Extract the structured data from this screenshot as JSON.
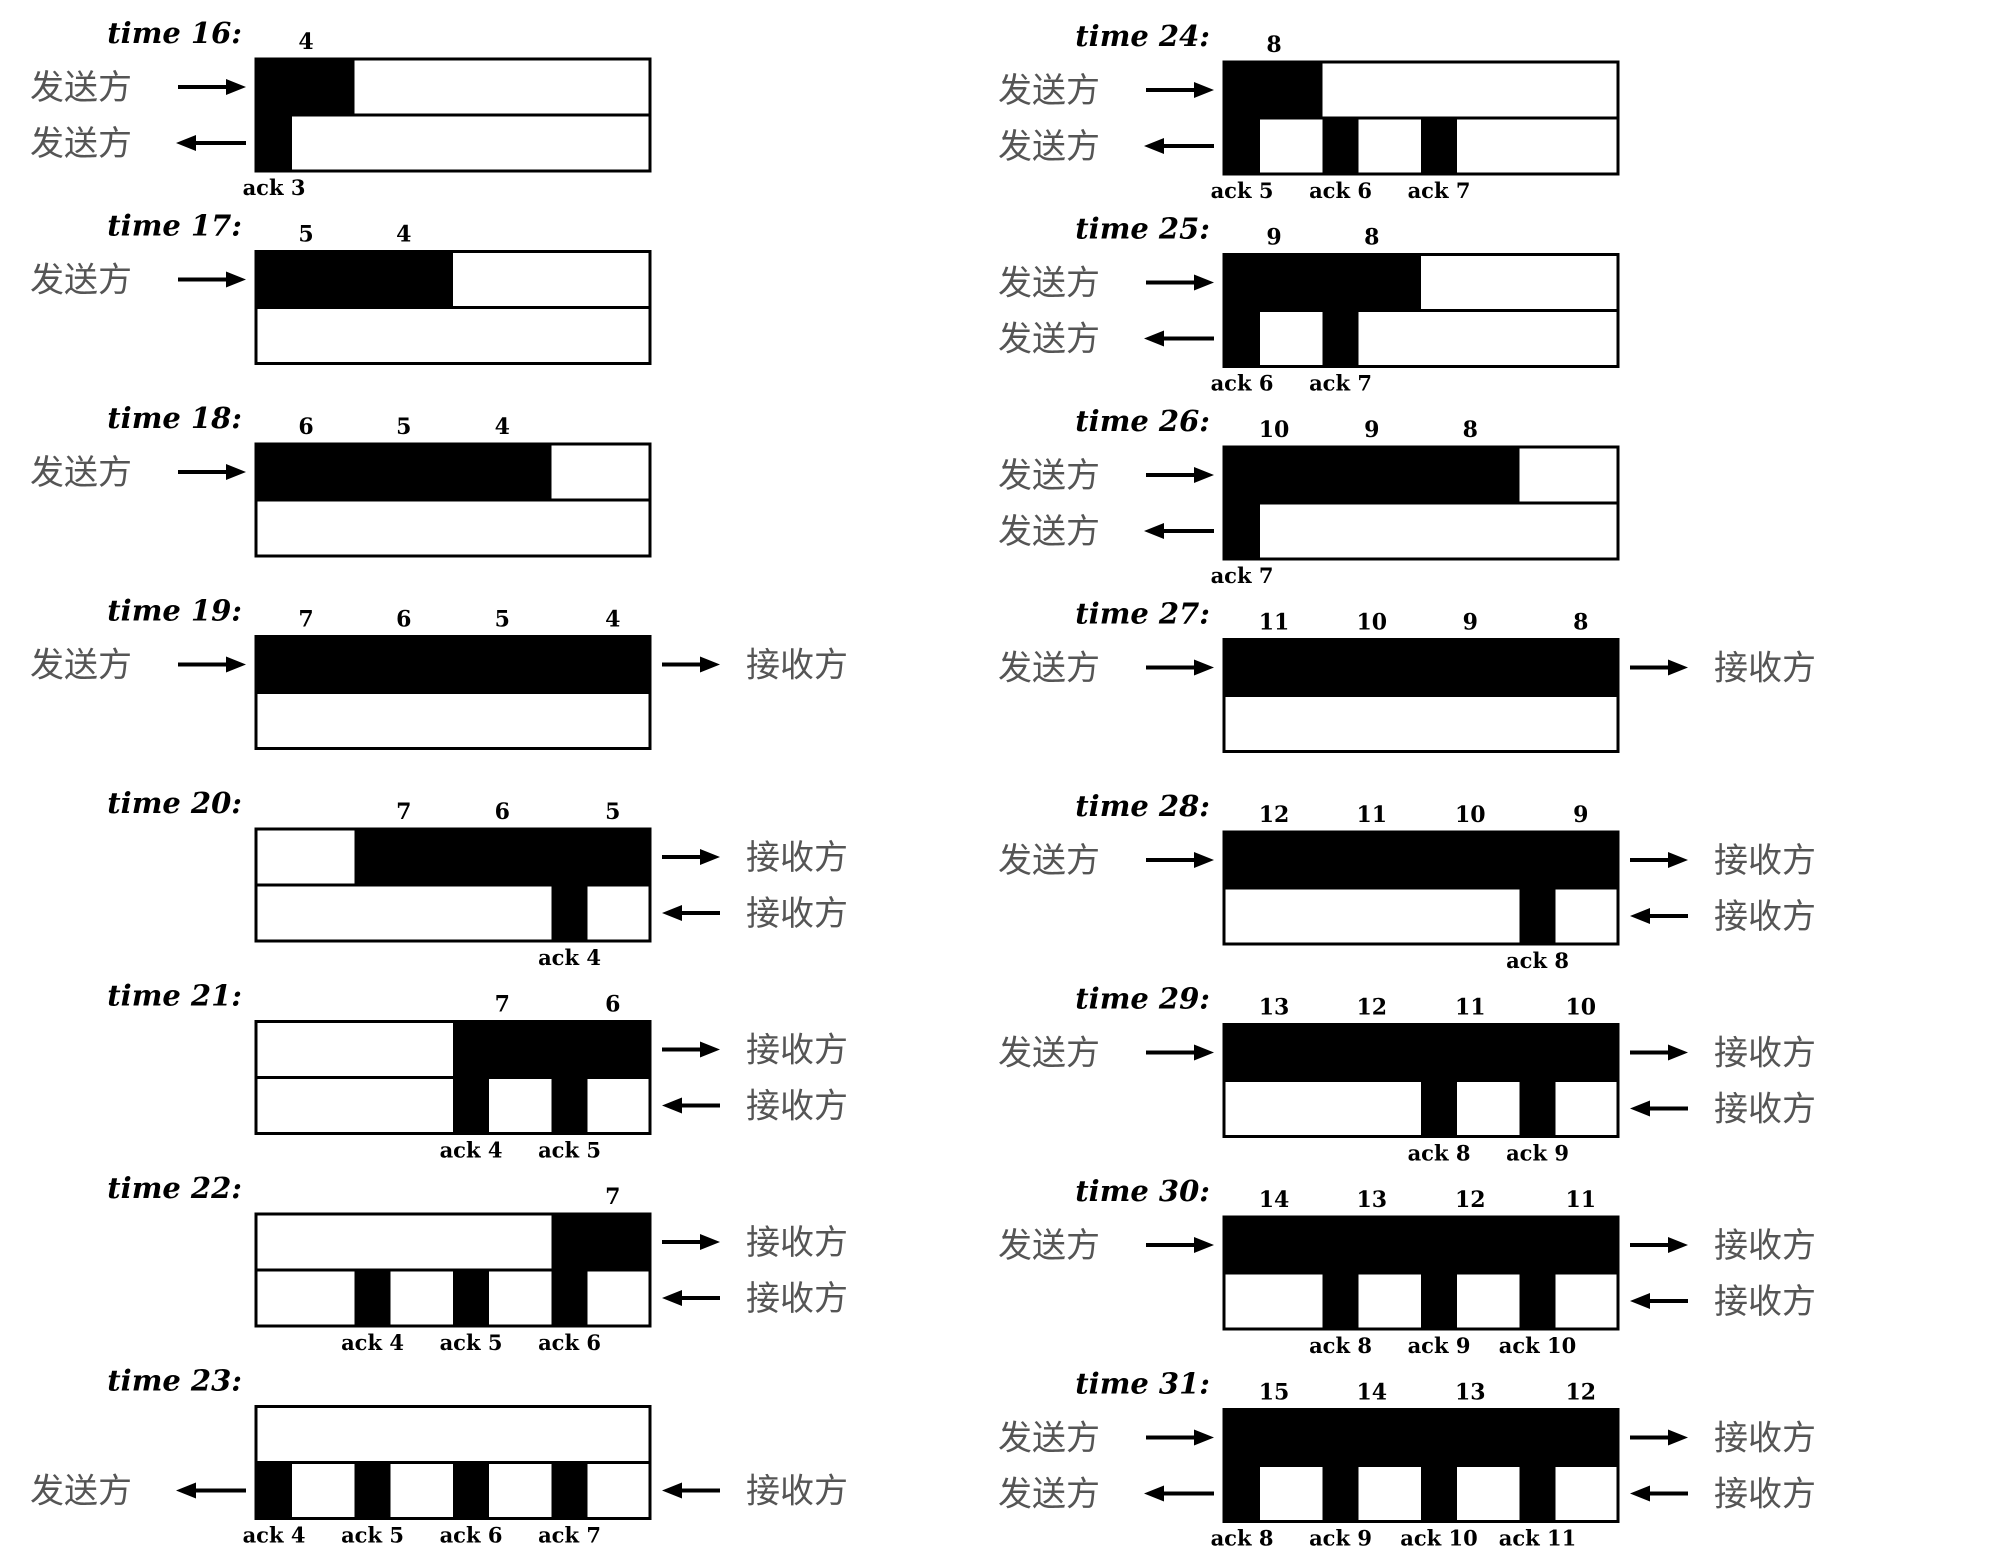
{
  "labels": {
    "sender": "发送方",
    "receiver": "接收方"
  },
  "panels": [
    {
      "time": "time 16:",
      "nums": [
        "4"
      ],
      "top": [
        [
          0,
          1
        ]
      ],
      "bot": [
        0
      ],
      "acks": [
        "ack 3"
      ],
      "sIn": true,
      "sOut": true,
      "rIn": false,
      "rOut": false
    },
    {
      "time": "time 17:",
      "nums": [
        "5",
        "4"
      ],
      "top": [
        [
          0,
          2
        ]
      ],
      "bot": [],
      "acks": [],
      "sIn": true,
      "sOut": false,
      "rIn": false,
      "rOut": false
    },
    {
      "time": "time 18:",
      "nums": [
        "6",
        "5",
        "4"
      ],
      "top": [
        [
          0,
          3
        ]
      ],
      "bot": [],
      "acks": [],
      "sIn": true,
      "sOut": false,
      "rIn": false,
      "rOut": false
    },
    {
      "time": "time 19:",
      "nums": [
        "7",
        "6",
        "5",
        "4"
      ],
      "top": [
        [
          0,
          4
        ]
      ],
      "bot": [],
      "acks": [],
      "sIn": true,
      "sOut": false,
      "rIn": false,
      "rOut": true
    },
    {
      "time": "time 20:",
      "nums": [
        "",
        "7",
        "6",
        "5"
      ],
      "top": [
        [
          1,
          4
        ]
      ],
      "bot": [
        3
      ],
      "acks": [
        "ack 4"
      ],
      "sIn": false,
      "sOut": false,
      "rIn": true,
      "rOut": true
    },
    {
      "time": "time 21:",
      "nums": [
        "",
        "",
        "7",
        "6"
      ],
      "top": [
        [
          2,
          4
        ]
      ],
      "bot": [
        2,
        3
      ],
      "acks": [
        "ack 4",
        "ack 5"
      ],
      "sIn": false,
      "sOut": false,
      "rIn": true,
      "rOut": true
    },
    {
      "time": "time 22:",
      "nums": [
        "",
        "",
        "",
        "7"
      ],
      "top": [
        [
          3,
          4
        ]
      ],
      "bot": [
        1,
        2,
        3
      ],
      "acks": [
        "ack 4",
        "ack 5",
        "ack 6"
      ],
      "sIn": false,
      "sOut": false,
      "rIn": true,
      "rOut": true
    },
    {
      "time": "time 23:",
      "nums": [],
      "top": [],
      "bot": [
        0,
        1,
        2,
        3
      ],
      "acks": [
        "ack 4",
        "ack 5",
        "ack 6",
        "ack 7"
      ],
      "sIn": false,
      "sOut": true,
      "rIn": true,
      "rOut": false
    },
    {
      "time": "time 24:",
      "nums": [
        "8"
      ],
      "top": [
        [
          0,
          1
        ]
      ],
      "bot": [
        0,
        1,
        2
      ],
      "acks": [
        "ack 5",
        "ack 6",
        "ack 7"
      ],
      "sIn": true,
      "sOut": true,
      "rIn": false,
      "rOut": false
    },
    {
      "time": "time 25:",
      "nums": [
        "9",
        "8"
      ],
      "top": [
        [
          0,
          2
        ]
      ],
      "bot": [
        0,
        1
      ],
      "acks": [
        "ack 6",
        "ack 7"
      ],
      "sIn": true,
      "sOut": true,
      "rIn": false,
      "rOut": false
    },
    {
      "time": "time 26:",
      "nums": [
        "10",
        "9",
        "8"
      ],
      "top": [
        [
          0,
          3
        ]
      ],
      "bot": [
        0
      ],
      "acks": [
        "ack 7"
      ],
      "sIn": true,
      "sOut": true,
      "rIn": false,
      "rOut": false
    },
    {
      "time": "time 27:",
      "nums": [
        "11",
        "10",
        "9",
        "8"
      ],
      "top": [
        [
          0,
          4
        ]
      ],
      "bot": [],
      "acks": [],
      "sIn": true,
      "sOut": false,
      "rIn": false,
      "rOut": true
    },
    {
      "time": "time 28:",
      "nums": [
        "12",
        "11",
        "10",
        "9"
      ],
      "top": [
        [
          0,
          4
        ]
      ],
      "bot": [
        3
      ],
      "acks": [
        "ack 8"
      ],
      "sIn": true,
      "sOut": false,
      "rIn": true,
      "rOut": true
    },
    {
      "time": "time 29:",
      "nums": [
        "13",
        "12",
        "11",
        "10"
      ],
      "top": [
        [
          0,
          4
        ]
      ],
      "bot": [
        2,
        3
      ],
      "acks": [
        "ack 8",
        "ack 9"
      ],
      "sIn": true,
      "sOut": false,
      "rIn": true,
      "rOut": true
    },
    {
      "time": "time 30:",
      "nums": [
        "14",
        "13",
        "12",
        "11"
      ],
      "top": [
        [
          0,
          4
        ]
      ],
      "bot": [
        1,
        2,
        3
      ],
      "acks": [
        "ack 8",
        "ack 9",
        "ack 10"
      ],
      "sIn": true,
      "sOut": false,
      "rIn": true,
      "rOut": true
    },
    {
      "time": "time 31:",
      "nums": [
        "15",
        "14",
        "13",
        "12"
      ],
      "top": [
        [
          0,
          4
        ]
      ],
      "bot": [
        0,
        1,
        2,
        3
      ],
      "acks": [
        "ack 8",
        "ack 9",
        "ack 10",
        "ack 11"
      ],
      "sIn": true,
      "sOut": true,
      "rIn": true,
      "rOut": true
    }
  ]
}
